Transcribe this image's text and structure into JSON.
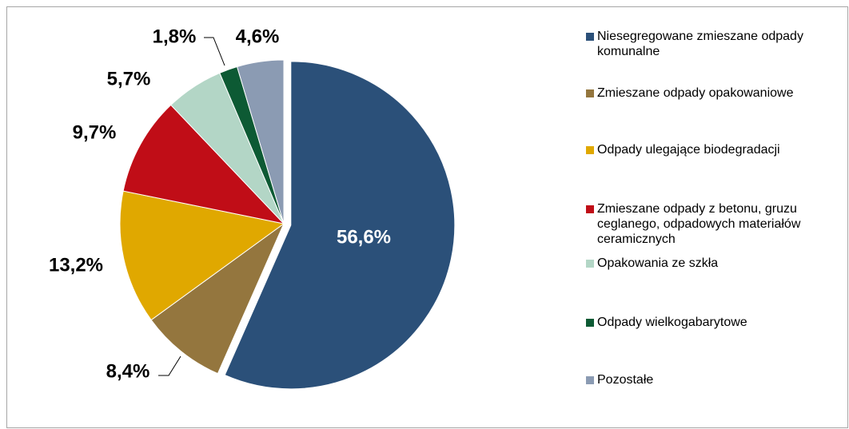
{
  "chart_data": {
    "type": "pie",
    "categories": [
      "Niesegregowane zmieszane odpady komunalne",
      "Zmieszane odpady opakowaniowe",
      "Odpady ulegające biodegradacji",
      "Zmieszane odpady z betonu, gruzu ceglanego, odpadowych materiałów ceramicznych",
      "Opakowania ze szkła",
      "Odpady wielkogabarytowe",
      "Pozostałe"
    ],
    "values": [
      56.6,
      8.4,
      13.2,
      9.7,
      5.7,
      1.8,
      4.6
    ],
    "value_labels": [
      "56,6%",
      "8,4%",
      "13,2%",
      "9,7%",
      "5,7%",
      "1,8%",
      "4,6%"
    ],
    "colors": [
      "#2b5079",
      "#94763e",
      "#e0a800",
      "#c00d17",
      "#b3d6c6",
      "#0d5a34",
      "#8b9bb3"
    ],
    "legend": "right"
  }
}
